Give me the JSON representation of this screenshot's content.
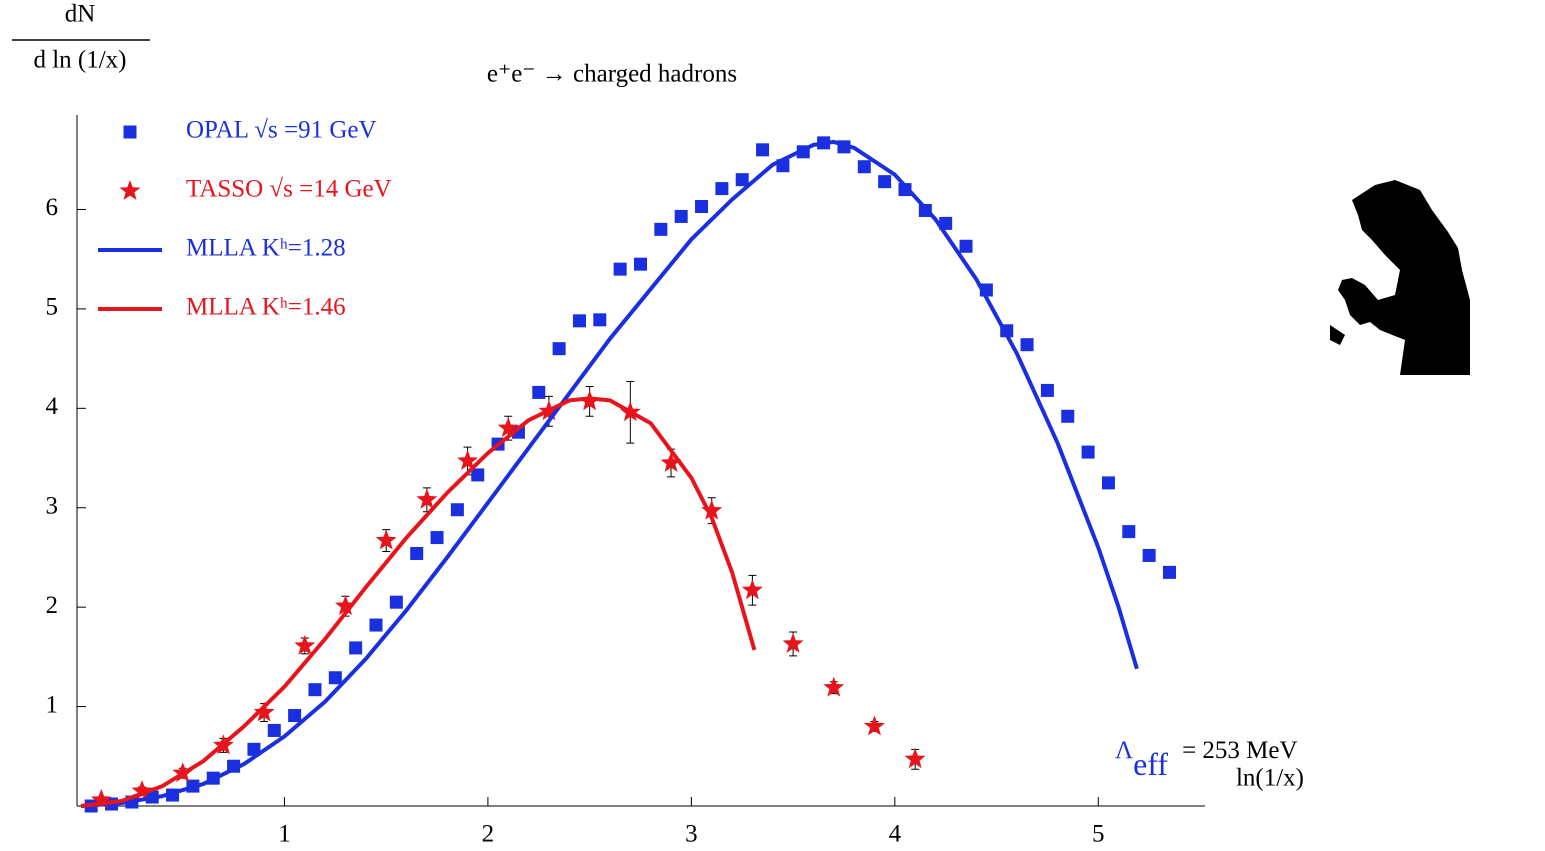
{
  "chart_data": {
    "type": "scatter",
    "title": "e⁺e⁻ → charged hadrons",
    "y_label_numerator": "dN",
    "y_label_denominator": "d ln (1/x)",
    "x_label": "ln(1/x)",
    "annotation_symbol": "Λ",
    "annotation_subscript": "eff",
    "annotation_value": "= 253 MeV",
    "xlim": [
      0,
      5.5
    ],
    "ylim": [
      0,
      6.9
    ],
    "xticks": [
      1,
      2,
      3,
      4,
      5
    ],
    "yticks": [
      1,
      2,
      3,
      4,
      5,
      6
    ],
    "legend": "top-left",
    "series": [
      {
        "name": "OPAL √s =91 GeV",
        "color": "#1a2fe0",
        "type": "scatter",
        "marker": "square",
        "x": [
          0.05,
          0.15,
          0.25,
          0.35,
          0.45,
          0.55,
          0.65,
          0.75,
          0.85,
          0.95,
          1.05,
          1.15,
          1.25,
          1.35,
          1.45,
          1.55,
          1.65,
          1.75,
          1.85,
          1.95,
          2.05,
          2.15,
          2.25,
          2.35,
          2.45,
          2.55,
          2.65,
          2.75,
          2.85,
          2.95,
          3.05,
          3.15,
          3.25,
          3.35,
          3.45,
          3.55,
          3.65,
          3.75,
          3.85,
          3.95,
          4.05,
          4.15,
          4.25,
          4.35,
          4.45,
          4.55,
          4.65,
          4.75,
          4.85,
          4.95,
          5.05,
          5.15,
          5.25,
          5.35
        ],
        "values": [
          0,
          0.02,
          0.04,
          0.09,
          0.11,
          0.2,
          0.28,
          0.4,
          0.57,
          0.76,
          0.91,
          1.17,
          1.29,
          1.59,
          1.82,
          2.05,
          2.54,
          2.7,
          2.98,
          3.33,
          3.64,
          3.76,
          4.16,
          4.6,
          4.88,
          4.89,
          5.4,
          5.45,
          5.8,
          5.93,
          6.03,
          6.21,
          6.3,
          6.6,
          6.44,
          6.58,
          6.67,
          6.63,
          6.43,
          6.28,
          6.2,
          5.99,
          5.86,
          5.63,
          5.19,
          4.78,
          4.64,
          4.18,
          3.92,
          3.56,
          3.25,
          2.76,
          2.52,
          2.35
        ]
      },
      {
        "name": "TASSO √s =14 GeV",
        "color": "#e8141c",
        "type": "scatter",
        "marker": "star",
        "x": [
          0.1,
          0.3,
          0.5,
          0.7,
          0.9,
          1.1,
          1.3,
          1.5,
          1.7,
          1.9,
          2.1,
          2.3,
          2.5,
          2.7,
          2.9,
          3.1,
          3.3,
          3.5,
          3.7,
          3.9,
          4.1
        ],
        "values": [
          0.06,
          0.15,
          0.33,
          0.61,
          0.94,
          1.61,
          2.01,
          2.67,
          3.08,
          3.47,
          3.8,
          3.97,
          4.07,
          3.96,
          3.45,
          2.97,
          2.17,
          1.63,
          1.19,
          0.8,
          0.47
        ],
        "errors": [
          0.03,
          0.04,
          0.05,
          0.07,
          0.09,
          0.08,
          0.1,
          0.11,
          0.12,
          0.14,
          0.12,
          0.15,
          0.15,
          0.31,
          0.14,
          0.13,
          0.15,
          0.12,
          0.06,
          0.05,
          0.1
        ]
      },
      {
        "name": "MLLA Kʰ=1.28",
        "color": "#1a2fe0",
        "type": "line",
        "x": [
          0,
          0.2,
          0.4,
          0.6,
          0.8,
          1.0,
          1.2,
          1.4,
          1.6,
          1.8,
          2.0,
          2.2,
          2.4,
          2.6,
          2.8,
          3.0,
          3.2,
          3.4,
          3.6,
          3.7,
          3.8,
          4.0,
          4.2,
          4.4,
          4.6,
          4.8,
          5.0,
          5.1,
          5.19
        ],
        "values": [
          0,
          0.03,
          0.1,
          0.22,
          0.42,
          0.7,
          1.05,
          1.48,
          1.97,
          2.5,
          3.05,
          3.6,
          4.15,
          4.7,
          5.2,
          5.7,
          6.1,
          6.45,
          6.65,
          6.68,
          6.62,
          6.35,
          5.9,
          5.3,
          4.55,
          3.65,
          2.6,
          2.0,
          1.38
        ]
      },
      {
        "name": "MLLA Kʰ=1.46",
        "color": "#e8141c",
        "type": "line",
        "x": [
          0,
          0.2,
          0.4,
          0.6,
          0.8,
          1.0,
          1.2,
          1.4,
          1.6,
          1.8,
          2.0,
          2.2,
          2.4,
          2.5,
          2.6,
          2.8,
          3.0,
          3.1,
          3.2,
          3.31
        ],
        "values": [
          0,
          0.05,
          0.2,
          0.45,
          0.8,
          1.2,
          1.68,
          2.2,
          2.7,
          3.15,
          3.55,
          3.88,
          4.08,
          4.1,
          4.08,
          3.85,
          3.3,
          2.9,
          2.35,
          1.57
        ]
      }
    ]
  }
}
